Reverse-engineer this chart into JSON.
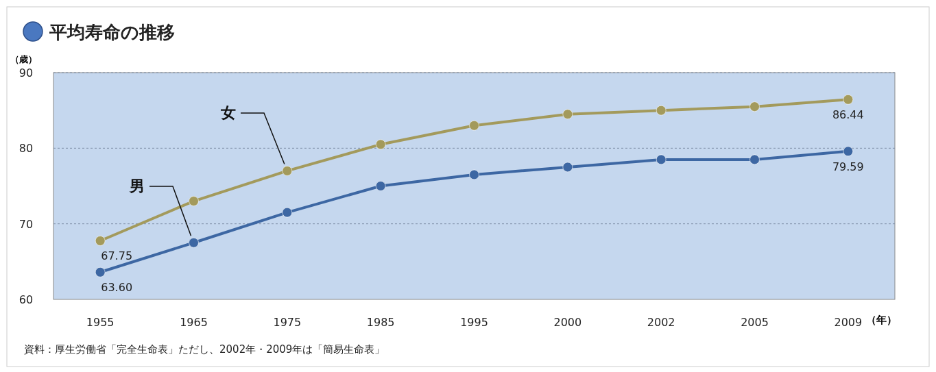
{
  "chart_data": {
    "type": "line",
    "title": "平均寿命の推移",
    "ylabel": "（歳）",
    "xlabel": "（年）",
    "categories": [
      "1955",
      "1965",
      "1975",
      "1985",
      "1995",
      "2000",
      "2002",
      "2005",
      "2009"
    ],
    "series": [
      {
        "name": "女",
        "color": "#a39a5c",
        "values": [
          67.75,
          73,
          77,
          80.5,
          83,
          84.5,
          85,
          85.5,
          86.44
        ],
        "value_labels": [
          "67.75",
          null,
          null,
          null,
          null,
          null,
          null,
          null,
          "86.44"
        ]
      },
      {
        "name": "男",
        "color": "#3d67a3",
        "values": [
          63.6,
          67.5,
          71.5,
          75,
          76.5,
          77.5,
          78.5,
          78.5,
          79.59
        ],
        "value_labels": [
          "63.60",
          null,
          null,
          null,
          null,
          null,
          null,
          null,
          "79.59"
        ]
      }
    ],
    "ylim": [
      60,
      90
    ],
    "yticks": [
      60,
      70,
      80,
      90
    ],
    "grid": "y",
    "legend": false,
    "marker": "circle",
    "line_style": "solid",
    "annotations": [
      "資料：厚生労働省「完全生命表」ただし、2002年・2009年は「簡易生命表」"
    ]
  }
}
